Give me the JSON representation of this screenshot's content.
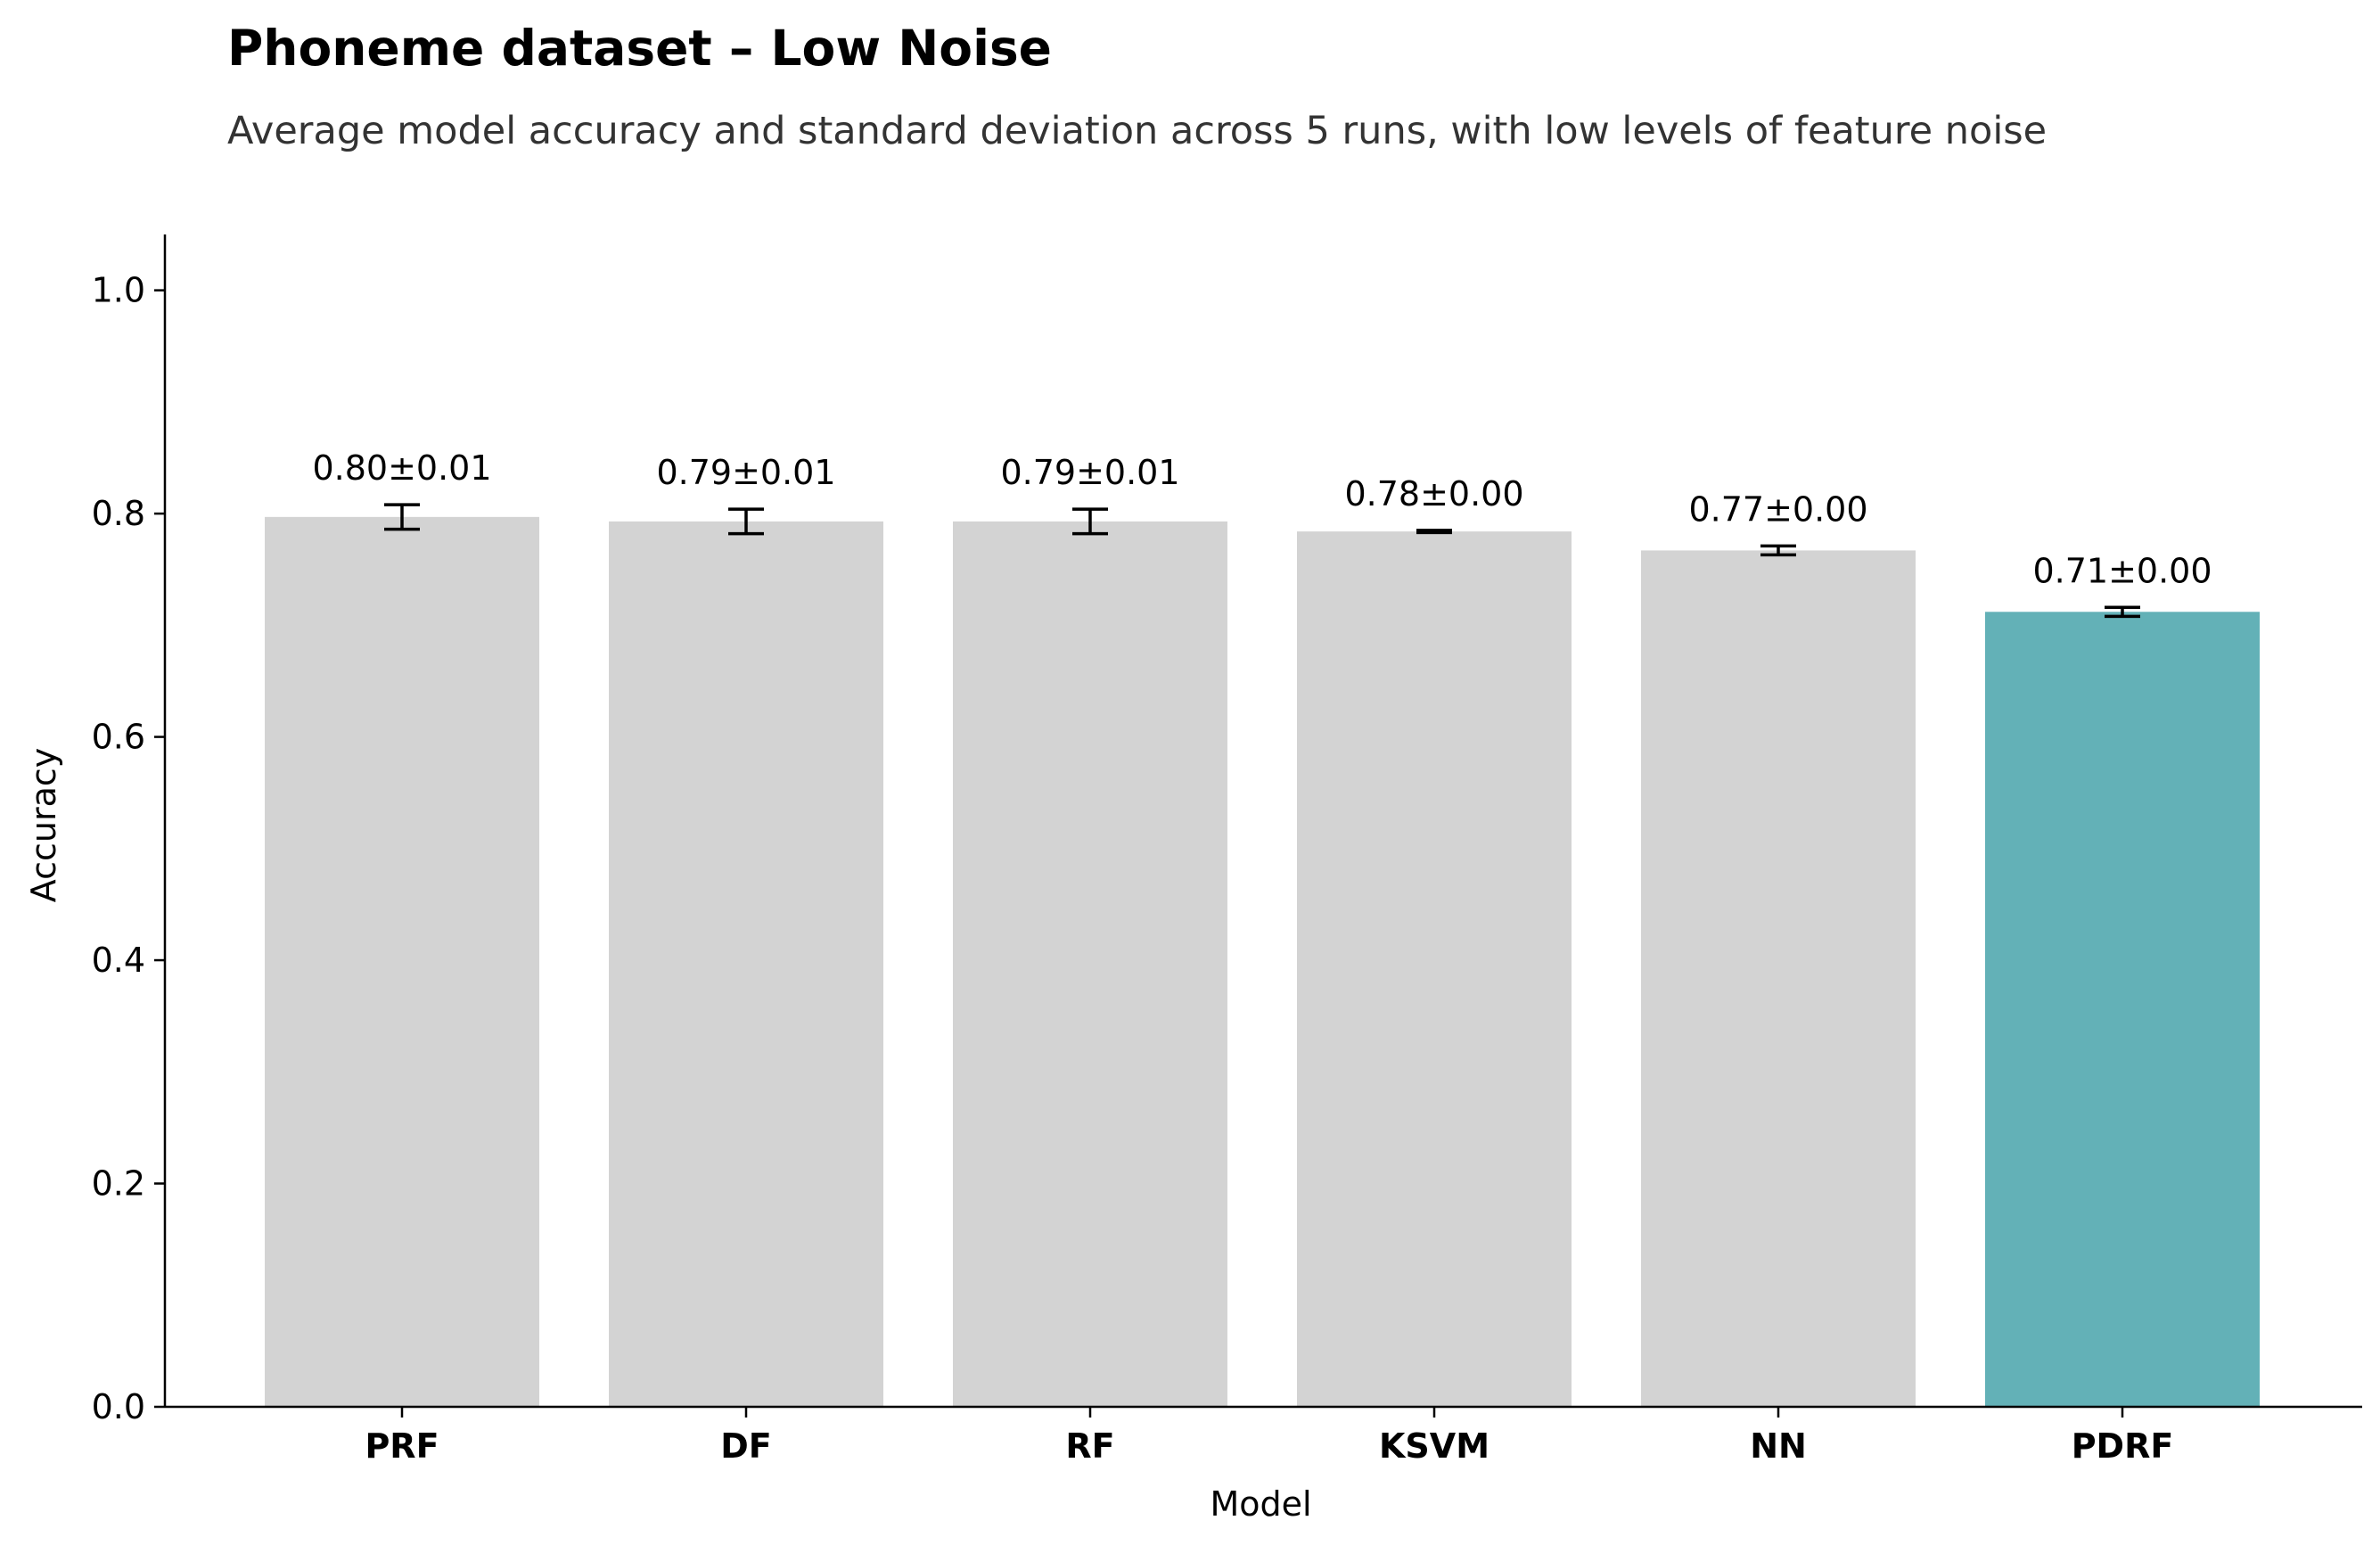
{
  "chart_data": {
    "type": "bar",
    "title": "Phoneme dataset – Low Noise",
    "subtitle": "Average model accuracy and standard deviation across 5 runs, with low levels of feature noise",
    "xlabel": "Model",
    "ylabel": "Accuracy",
    "ylim": [
      0,
      1.05
    ],
    "yticks": [
      0.0,
      0.2,
      0.4,
      0.6,
      0.8,
      1.0
    ],
    "ytick_labels": [
      "0.0",
      "0.2",
      "0.4",
      "0.6",
      "0.8",
      "1.0"
    ],
    "categories": [
      "PRF",
      "DF",
      "RF",
      "KSVM",
      "NN",
      "PDRF"
    ],
    "values": [
      0.797,
      0.793,
      0.793,
      0.784,
      0.767,
      0.712
    ],
    "errors": [
      0.011,
      0.011,
      0.011,
      0.001,
      0.004,
      0.004
    ],
    "data_labels": [
      "0.80±0.01",
      "0.79±0.01",
      "0.79±0.01",
      "0.78±0.00",
      "0.77±0.00",
      "0.71±0.00"
    ],
    "highlight_category": "PDRF",
    "colors": {
      "default_bar": "#d3d3d3",
      "highlight_bar": "#63b1b7",
      "errorbar": "#000000",
      "axis": "#000000"
    },
    "grid": false,
    "legend": "none"
  }
}
